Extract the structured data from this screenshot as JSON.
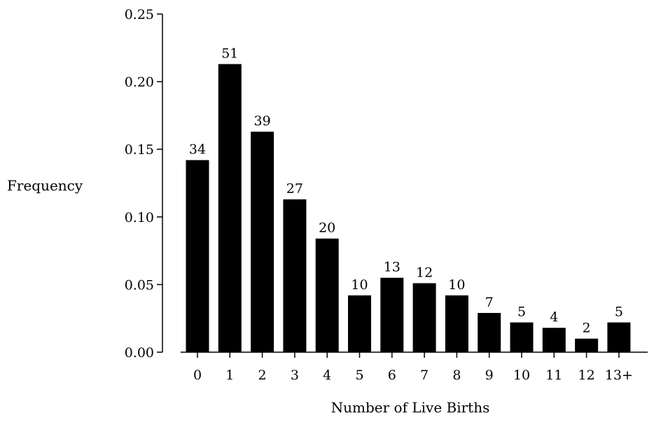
{
  "chart_data": {
    "type": "bar",
    "categories": [
      "0",
      "1",
      "2",
      "3",
      "4",
      "5",
      "6",
      "7",
      "8",
      "9",
      "10",
      "11",
      "12",
      "13+"
    ],
    "values": [
      0.142,
      0.213,
      0.163,
      0.113,
      0.084,
      0.042,
      0.055,
      0.051,
      0.042,
      0.029,
      0.022,
      0.018,
      0.01,
      0.022
    ],
    "data_labels": [
      "34",
      "51",
      "39",
      "27",
      "20",
      "10",
      "13",
      "12",
      "10",
      "7",
      "5",
      "4",
      "2",
      "5"
    ],
    "title": "",
    "xlabel": "Number of Live Births",
    "ylabel": "Frequency",
    "ylim": [
      0,
      0.25
    ],
    "yticks": [
      0,
      0.05,
      0.1,
      0.15,
      0.2,
      0.25
    ],
    "ytick_labels": [
      "0.00",
      "0.05",
      "0.10",
      "0.15",
      "0.20",
      "0.25"
    ],
    "grid": false,
    "legend": "none",
    "bar_color": "#000000"
  }
}
